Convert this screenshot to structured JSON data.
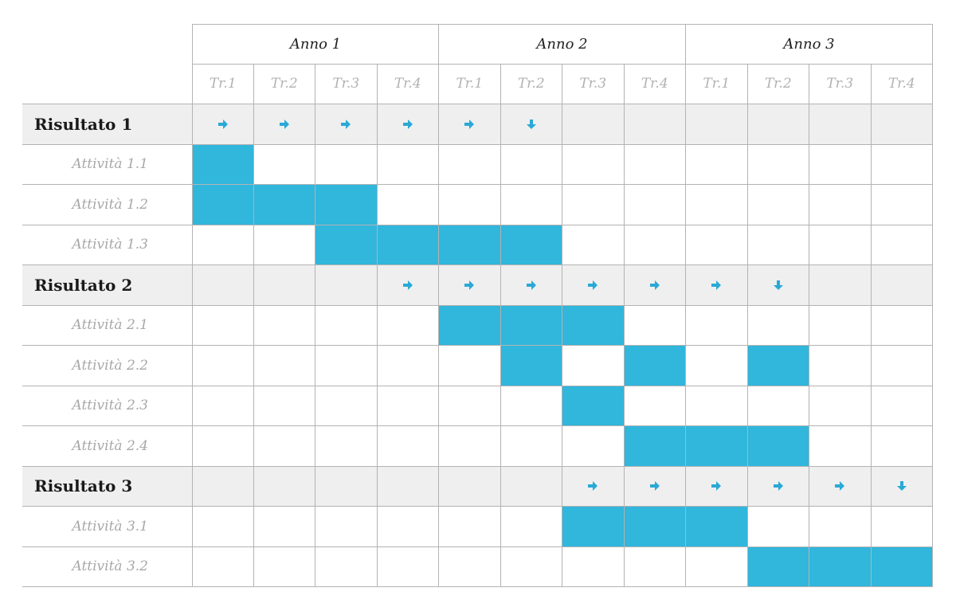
{
  "years": [
    "Anno 1",
    "Anno 2",
    "Anno 3"
  ],
  "quarters": [
    "Tr.1",
    "Tr.2",
    "Tr.3",
    "Tr.4",
    "Tr.1",
    "Tr.2",
    "Tr.3",
    "Tr.4",
    "Tr.1",
    "Tr.2",
    "Tr.3",
    "Tr.4"
  ],
  "colors": {
    "bar": "#31b6dc",
    "arrow": "#2aa9d6",
    "result_row": "#efefef",
    "grid": "#b3b3b3"
  },
  "rows": [
    {
      "type": "result",
      "label": "Risultato 1",
      "arrows": [
        "right",
        "right",
        "right",
        "right",
        "right",
        "down",
        "",
        "",
        "",
        "",
        "",
        ""
      ]
    },
    {
      "type": "activity",
      "label": "Attività 1.1",
      "active": [
        1,
        0,
        0,
        0,
        0,
        0,
        0,
        0,
        0,
        0,
        0,
        0
      ]
    },
    {
      "type": "activity",
      "label": "Attività 1.2",
      "active": [
        1,
        1,
        1,
        0,
        0,
        0,
        0,
        0,
        0,
        0,
        0,
        0
      ]
    },
    {
      "type": "activity",
      "label": "Attività 1.3",
      "active": [
        0,
        0,
        1,
        1,
        1,
        1,
        0,
        0,
        0,
        0,
        0,
        0
      ]
    },
    {
      "type": "result",
      "label": "Risultato 2",
      "arrows": [
        "",
        "",
        "",
        "right",
        "right",
        "right",
        "right",
        "right",
        "right",
        "down",
        "",
        ""
      ]
    },
    {
      "type": "activity",
      "label": "Attività 2.1",
      "active": [
        0,
        0,
        0,
        0,
        1,
        1,
        1,
        0,
        0,
        0,
        0,
        0
      ]
    },
    {
      "type": "activity",
      "label": "Attività 2.2",
      "active": [
        0,
        0,
        0,
        0,
        0,
        1,
        0,
        1,
        0,
        1,
        0,
        0
      ]
    },
    {
      "type": "activity",
      "label": "Attività 2.3",
      "active": [
        0,
        0,
        0,
        0,
        0,
        0,
        1,
        0,
        0,
        0,
        0,
        0
      ]
    },
    {
      "type": "activity",
      "label": "Attività 2.4",
      "active": [
        0,
        0,
        0,
        0,
        0,
        0,
        0,
        1,
        1,
        1,
        0,
        0
      ]
    },
    {
      "type": "result",
      "label": "Risultato 3",
      "arrows": [
        "",
        "",
        "",
        "",
        "",
        "",
        "right",
        "right",
        "right",
        "right",
        "right",
        "down"
      ]
    },
    {
      "type": "activity",
      "label": "Attività 3.1",
      "active": [
        0,
        0,
        0,
        0,
        0,
        0,
        1,
        1,
        1,
        0,
        0,
        0
      ]
    },
    {
      "type": "activity",
      "label": "Attività 3.2",
      "active": [
        0,
        0,
        0,
        0,
        0,
        0,
        0,
        0,
        0,
        1,
        1,
        1
      ]
    }
  ]
}
